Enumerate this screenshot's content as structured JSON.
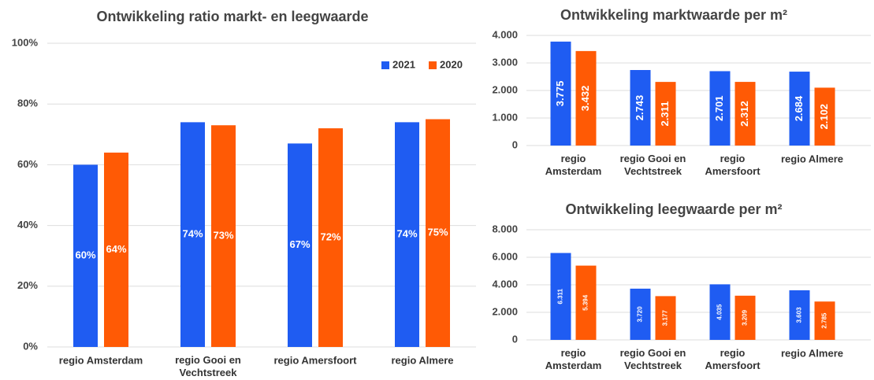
{
  "chart_data": [
    {
      "type": "bar",
      "title": "Ontwikkeling ratio markt- en leegwaarde",
      "categories": [
        "regio Amsterdam",
        "regio Gooi en Vechtstreek",
        "regio Amersfoort",
        "regio Almere"
      ],
      "series": [
        {
          "name": "2021",
          "color": "#1f5cf2",
          "values": [
            60,
            74,
            67,
            74
          ],
          "value_labels": [
            "60%",
            "74%",
            "67%",
            "74%"
          ]
        },
        {
          "name": "2020",
          "color": "#ff5a05",
          "values": [
            64,
            73,
            72,
            75
          ],
          "value_labels": [
            "64%",
            "73%",
            "72%",
            "75%"
          ]
        }
      ],
      "ylim": [
        0,
        100
      ],
      "yticks": [
        {
          "value": 0,
          "label": "0%"
        },
        {
          "value": 20,
          "label": "20%"
        },
        {
          "value": 40,
          "label": "40%"
        },
        {
          "value": 60,
          "label": "60%"
        },
        {
          "value": 80,
          "label": "80%"
        },
        {
          "value": 100,
          "label": "100%"
        }
      ],
      "grid": true,
      "legend": "top-right"
    },
    {
      "type": "bar",
      "title": "Ontwikkeling marktwaarde per m²",
      "categories": [
        "regio Amsterdam",
        "regio Gooi en Vechtstreek",
        "regio Amersfoort",
        "regio Almere"
      ],
      "series": [
        {
          "color": "#1f5cf2",
          "values": [
            3775,
            2743,
            2701,
            2684
          ],
          "value_labels": [
            "3.775",
            "2.743",
            "2.701",
            "2.684"
          ]
        },
        {
          "color": "#ff5a05",
          "values": [
            3432,
            2311,
            2312,
            2102
          ],
          "value_labels": [
            "3.432",
            "2.311",
            "2.312",
            "2.102"
          ]
        }
      ],
      "ylim": [
        0,
        4000
      ],
      "yticks": [
        0,
        {
          "value": 1000,
          "label": "1.000"
        },
        {
          "value": 2000,
          "label": "2.000"
        },
        {
          "value": 3000,
          "label": "3.000"
        },
        {
          "value": 4000,
          "label": "4.000"
        }
      ],
      "grid": true
    },
    {
      "type": "bar",
      "title": "Ontwikkeling leegwaarde per m²",
      "categories": [
        "regio Amsterdam",
        "regio Gooi en Vechtstreek",
        "regio Amersfoort",
        "regio Almere"
      ],
      "series": [
        {
          "color": "#1f5cf2",
          "values": [
            6311,
            3720,
            4035,
            3603
          ],
          "value_labels": [
            "6.311",
            "3.720",
            "4.035",
            "3.603"
          ]
        },
        {
          "color": "#ff5a05",
          "values": [
            5394,
            3177,
            3209,
            2785
          ],
          "value_labels": [
            "5.394",
            "3.177",
            "3.209",
            "2.785"
          ]
        }
      ],
      "ylim": [
        0,
        8000
      ],
      "yticks": [
        0,
        {
          "value": 2000,
          "label": "2.000"
        },
        {
          "value": 4000,
          "label": "4.000"
        },
        {
          "value": 6000,
          "label": "6.000"
        },
        {
          "value": 8000,
          "label": "8.000"
        }
      ],
      "grid": true
    }
  ]
}
